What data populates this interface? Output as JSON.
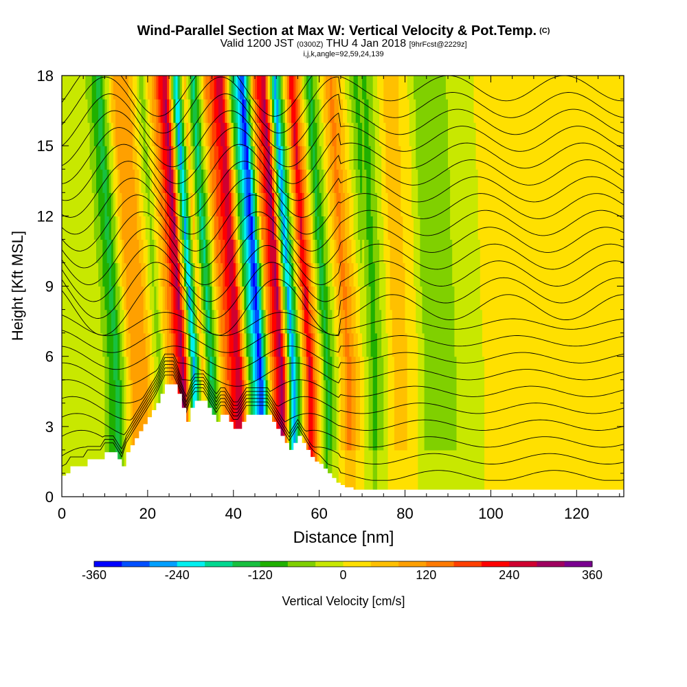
{
  "title": {
    "line1": "Wind-Parallel Section at Max W: Vertical Velocity & Pot.Temp.",
    "line1_mark": "(C)",
    "line2_main_a": "Valid 1200 JST",
    "line2_small_a": "(0300Z)",
    "line2_main_b": "THU 4 Jan 2018",
    "line2_small_b": "[9hrFcst@2229z]",
    "line3": "i,j,k,angle=92,59,24,139"
  },
  "chart_data": {
    "type": "heatmap",
    "xlabel": "Distance [nm]",
    "ylabel": "Height [Kft MSL]",
    "xlim": [
      0,
      131
    ],
    "ylim": [
      0,
      18
    ],
    "xticks": [
      0,
      20,
      40,
      60,
      80,
      100,
      120
    ],
    "yticks": [
      0,
      3,
      6,
      9,
      12,
      15,
      18
    ],
    "colorbar": {
      "label": "Vertical Velocity [cm/s]",
      "range": [
        -360,
        360
      ],
      "step": 40,
      "tick_values": [
        -360,
        -240,
        -120,
        0,
        120,
        240,
        360
      ],
      "tick_labels": [
        "-360",
        "-240",
        "-120",
        "0",
        "120",
        "240",
        "360"
      ],
      "colors": [
        "#0000ff",
        "#0050ff",
        "#00a0ff",
        "#00f0f0",
        "#00d890",
        "#18c040",
        "#20b000",
        "#80d000",
        "#c8e800",
        "#ffe000",
        "#ffc000",
        "#ffa000",
        "#ff7a00",
        "#ff4000",
        "#ff0000",
        "#d00030",
        "#a00060",
        "#7a0090"
      ]
    },
    "vertical_velocity_bands": [
      {
        "x": 2,
        "w": -10
      },
      {
        "x": 10,
        "w": -40
      },
      {
        "x": 13,
        "w": -140
      },
      {
        "x": 17,
        "w": 120
      },
      {
        "x": 20,
        "w": 80
      },
      {
        "x": 23,
        "w": -60
      },
      {
        "x": 26.5,
        "w": 160
      },
      {
        "x": 28.5,
        "w": 300
      },
      {
        "x": 31,
        "w": -260
      },
      {
        "x": 33,
        "w": 60
      },
      {
        "x": 35,
        "w": -180
      },
      {
        "x": 38,
        "w": 120
      },
      {
        "x": 41.5,
        "w": 280
      },
      {
        "x": 44,
        "w": -120
      },
      {
        "x": 46.5,
        "w": -340
      },
      {
        "x": 49,
        "w": 120
      },
      {
        "x": 51.5,
        "w": 300
      },
      {
        "x": 54,
        "w": -280
      },
      {
        "x": 58,
        "w": 250
      },
      {
        "x": 62,
        "w": -140
      },
      {
        "x": 67,
        "w": 140
      },
      {
        "x": 73,
        "w": -100
      },
      {
        "x": 78,
        "w": 60
      },
      {
        "x": 82,
        "w": 30
      },
      {
        "x": 86,
        "w": -80
      },
      {
        "x": 92,
        "w": -40
      },
      {
        "x": 100,
        "w": 10
      },
      {
        "x": 110,
        "w": 0
      },
      {
        "x": 120,
        "w": 10
      },
      {
        "x": 128,
        "w": 20
      }
    ],
    "potential_temperature_isolines": [
      4,
      6,
      8,
      10,
      12,
      14,
      16,
      18,
      20,
      22,
      24,
      26,
      28,
      30,
      32,
      34,
      36,
      38,
      40,
      42,
      44,
      46,
      48,
      50
    ],
    "terrain": {
      "x": [
        0,
        1,
        2,
        3,
        4,
        5,
        6,
        7,
        8,
        9,
        10,
        11,
        12,
        13,
        14,
        15,
        16,
        17,
        18,
        19,
        20,
        21,
        22,
        23,
        24,
        25,
        26,
        27,
        28,
        29,
        30,
        31,
        32,
        33,
        34,
        35,
        36,
        37,
        38,
        39,
        40,
        41,
        42,
        43,
        44,
        45,
        46,
        47,
        48,
        49,
        50,
        51,
        52,
        53,
        54,
        55,
        56,
        57,
        58,
        59,
        60,
        61,
        62,
        63,
        64,
        65,
        66,
        68,
        70,
        80,
        90,
        100,
        110,
        120,
        131
      ],
      "height": [
        0.9,
        1.0,
        1.3,
        1.3,
        1.3,
        1.3,
        1.6,
        1.6,
        1.6,
        1.6,
        1.9,
        1.9,
        1.9,
        1.6,
        1.3,
        1.9,
        2.2,
        2.5,
        2.8,
        3.1,
        3.4,
        3.7,
        4.0,
        4.4,
        4.8,
        4.8,
        4.8,
        4.4,
        3.8,
        3.2,
        3.8,
        4.1,
        4.1,
        4.1,
        3.8,
        3.5,
        3.2,
        3.5,
        3.5,
        3.2,
        2.9,
        2.9,
        3.2,
        3.5,
        3.5,
        3.5,
        3.5,
        3.5,
        3.5,
        3.2,
        2.9,
        2.6,
        2.3,
        2.0,
        2.3,
        2.6,
        2.3,
        2.0,
        1.7,
        1.5,
        1.4,
        1.2,
        1.0,
        0.8,
        0.6,
        0.5,
        0.4,
        0.3,
        0.3,
        0.3,
        0.3,
        0.3,
        0.3,
        0.3,
        0.3
      ]
    }
  }
}
